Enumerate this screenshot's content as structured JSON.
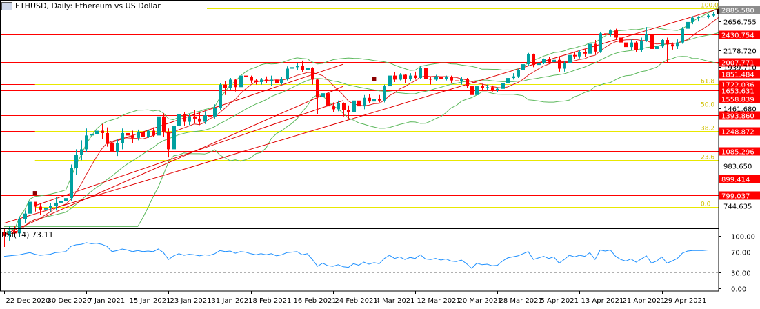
{
  "window": {
    "title": "ETHUSD, Daily:  Ethereum vs US Dollar",
    "icon": "chart-window-icon"
  },
  "rsi_panel": {
    "title": "RSI(14) 73.11",
    "levels": [
      "100.00",
      "70.00",
      "30.00",
      "0.00"
    ]
  },
  "price_axis": {
    "ticks": [
      "2656.755",
      "2178.720",
      "1939.710",
      "1461.680",
      "983.650",
      "744.635"
    ],
    "current_price": "2885.580",
    "current_price_color": "#8c8c8c"
  },
  "horizontal_levels": {
    "color": "#ff0000",
    "labels": [
      "2430.754",
      "2007.771",
      "1851.484",
      "1722.036",
      "1653.631",
      "1558.839",
      "1393.860",
      "1248.872",
      "1085.296",
      "899.414",
      "799.037"
    ]
  },
  "fibonacci": {
    "color": "#e8e800",
    "labels": [
      "100.0",
      "61.8",
      "50.0",
      "38.2",
      "23.6",
      "0.0"
    ]
  },
  "time_axis": {
    "labels": [
      "22 Dec 2020",
      "30 Dec 2020",
      "7 Jan 2021",
      "15 Jan 2021",
      "23 Jan 2021",
      "31 Jan 2021",
      "8 Feb 2021",
      "16 Feb 2021",
      "24 Feb 2021",
      "4 Mar 2021",
      "12 Mar 2021",
      "20 Mar 2021",
      "28 Mar 2021",
      "5 Apr 2021",
      "13 Apr 2021",
      "21 Apr 2021",
      "29 Apr 2021"
    ]
  },
  "colors": {
    "bull_candle": "#00a0a0",
    "bear_candle": "#ff0000",
    "bollinger": "#5cb85c",
    "sma": "#e02020",
    "rsi_line": "#1e90ff",
    "trendline": "#e00000"
  },
  "chart_data": {
    "type": "candlestick",
    "symbol": "ETHUSD",
    "timeframe": "Daily",
    "title": "ETHUSD, Daily:  Ethereum vs US Dollar",
    "start_date": "2020-12-21",
    "ylim": [
      640,
      2900
    ],
    "ohlc": [
      [
        619,
        640,
        560,
        605
      ],
      [
        605,
        645,
        585,
        625
      ],
      [
        625,
        648,
        600,
        615
      ],
      [
        615,
        690,
        600,
        680
      ],
      [
        680,
        720,
        660,
        705
      ],
      [
        705,
        780,
        690,
        765
      ],
      [
        765,
        760,
        715,
        740
      ],
      [
        740,
        755,
        700,
        725
      ],
      [
        725,
        750,
        700,
        735
      ],
      [
        735,
        760,
        715,
        745
      ],
      [
        745,
        790,
        720,
        760
      ],
      [
        760,
        780,
        740,
        770
      ],
      [
        770,
        800,
        760,
        785
      ],
      [
        785,
        990,
        770,
        965
      ],
      [
        965,
        1100,
        920,
        1060
      ],
      [
        1060,
        1170,
        1020,
        1100
      ],
      [
        1100,
        1270,
        1080,
        1210
      ],
      [
        1210,
        1250,
        1150,
        1220
      ],
      [
        1220,
        1330,
        1180,
        1250
      ],
      [
        1250,
        1310,
        1180,
        1230
      ],
      [
        1230,
        1280,
        1120,
        1150
      ],
      [
        1150,
        1200,
        990,
        1080
      ],
      [
        1080,
        1180,
        1050,
        1150
      ],
      [
        1150,
        1270,
        1100,
        1230
      ],
      [
        1230,
        1275,
        1150,
        1210
      ],
      [
        1210,
        1250,
        1150,
        1190
      ],
      [
        1190,
        1260,
        1170,
        1240
      ],
      [
        1240,
        1270,
        1180,
        1200
      ],
      [
        1200,
        1260,
        1190,
        1250
      ],
      [
        1250,
        1280,
        1200,
        1210
      ],
      [
        1210,
        1410,
        1190,
        1380
      ],
      [
        1380,
        1410,
        1200,
        1240
      ],
      [
        1240,
        1270,
        1040,
        1100
      ],
      [
        1100,
        1300,
        1080,
        1290
      ],
      [
        1290,
        1420,
        1270,
        1400
      ],
      [
        1400,
        1420,
        1290,
        1330
      ],
      [
        1330,
        1400,
        1300,
        1380
      ],
      [
        1380,
        1440,
        1320,
        1360
      ],
      [
        1360,
        1420,
        1300,
        1330
      ],
      [
        1330,
        1430,
        1310,
        1390
      ],
      [
        1390,
        1410,
        1340,
        1380
      ],
      [
        1380,
        1500,
        1360,
        1460
      ],
      [
        1460,
        1740,
        1440,
        1720
      ],
      [
        1720,
        1760,
        1600,
        1680
      ],
      [
        1680,
        1800,
        1660,
        1780
      ],
      [
        1780,
        1790,
        1640,
        1690
      ],
      [
        1690,
        1840,
        1670,
        1830
      ],
      [
        1830,
        1870,
        1780,
        1810
      ],
      [
        1810,
        1830,
        1740,
        1770
      ],
      [
        1770,
        1790,
        1720,
        1750
      ],
      [
        1750,
        1800,
        1720,
        1780
      ],
      [
        1780,
        1820,
        1740,
        1760
      ],
      [
        1760,
        1830,
        1700,
        1780
      ],
      [
        1780,
        1800,
        1660,
        1740
      ],
      [
        1740,
        1810,
        1720,
        1790
      ],
      [
        1790,
        1950,
        1770,
        1920
      ],
      [
        1920,
        1950,
        1880,
        1940
      ],
      [
        1940,
        1990,
        1900,
        1960
      ],
      [
        1960,
        2030,
        1870,
        1900
      ],
      [
        1900,
        1960,
        1850,
        1930
      ],
      [
        1930,
        1940,
        1720,
        1780
      ],
      [
        1780,
        1790,
        1400,
        1580
      ],
      [
        1580,
        1640,
        1480,
        1620
      ],
      [
        1620,
        1640,
        1460,
        1480
      ],
      [
        1480,
        1520,
        1420,
        1450
      ],
      [
        1450,
        1540,
        1430,
        1510
      ],
      [
        1510,
        1520,
        1380,
        1440
      ],
      [
        1440,
        1490,
        1360,
        1420
      ],
      [
        1420,
        1560,
        1400,
        1540
      ],
      [
        1540,
        1560,
        1460,
        1480
      ],
      [
        1480,
        1600,
        1450,
        1570
      ],
      [
        1570,
        1610,
        1510,
        1530
      ],
      [
        1530,
        1590,
        1500,
        1560
      ],
      [
        1560,
        1600,
        1520,
        1540
      ],
      [
        1540,
        1720,
        1520,
        1700
      ],
      [
        1700,
        1860,
        1680,
        1830
      ],
      [
        1830,
        1870,
        1750,
        1780
      ],
      [
        1780,
        1860,
        1770,
        1840
      ],
      [
        1840,
        1850,
        1740,
        1790
      ],
      [
        1790,
        1860,
        1760,
        1830
      ],
      [
        1830,
        1880,
        1780,
        1800
      ],
      [
        1800,
        1950,
        1790,
        1930
      ],
      [
        1930,
        1940,
        1750,
        1790
      ],
      [
        1790,
        1820,
        1720,
        1780
      ],
      [
        1780,
        1840,
        1760,
        1820
      ],
      [
        1820,
        1840,
        1760,
        1790
      ],
      [
        1790,
        1830,
        1770,
        1810
      ],
      [
        1810,
        1830,
        1740,
        1770
      ],
      [
        1770,
        1800,
        1720,
        1760
      ],
      [
        1760,
        1810,
        1720,
        1790
      ],
      [
        1790,
        1800,
        1680,
        1700
      ],
      [
        1700,
        1720,
        1570,
        1600
      ],
      [
        1600,
        1720,
        1590,
        1700
      ],
      [
        1700,
        1730,
        1660,
        1680
      ],
      [
        1680,
        1720,
        1650,
        1690
      ],
      [
        1690,
        1710,
        1640,
        1660
      ],
      [
        1660,
        1690,
        1630,
        1670
      ],
      [
        1670,
        1760,
        1650,
        1740
      ],
      [
        1740,
        1820,
        1720,
        1800
      ],
      [
        1800,
        1860,
        1780,
        1820
      ],
      [
        1820,
        1920,
        1800,
        1900
      ],
      [
        1900,
        2000,
        1880,
        1980
      ],
      [
        1980,
        2140,
        1960,
        2120
      ],
      [
        2120,
        2130,
        1940,
        1970
      ],
      [
        1970,
        2020,
        1950,
        2000
      ],
      [
        2000,
        2060,
        1980,
        2050
      ],
      [
        2050,
        2080,
        1980,
        2010
      ],
      [
        2010,
        2050,
        1970,
        2040
      ],
      [
        2040,
        2080,
        1880,
        1920
      ],
      [
        1920,
        2020,
        1880,
        2000
      ],
      [
        2000,
        2140,
        1990,
        2110
      ],
      [
        2110,
        2150,
        2050,
        2090
      ],
      [
        2090,
        2180,
        2060,
        2150
      ],
      [
        2150,
        2200,
        2080,
        2130
      ],
      [
        2130,
        2300,
        2120,
        2280
      ],
      [
        2280,
        2340,
        2120,
        2160
      ],
      [
        2160,
        2470,
        2140,
        2450
      ],
      [
        2450,
        2480,
        2360,
        2440
      ],
      [
        2440,
        2520,
        2400,
        2500
      ],
      [
        2500,
        2530,
        2340,
        2380
      ],
      [
        2380,
        2430,
        2080,
        2300
      ],
      [
        2300,
        2440,
        2150,
        2230
      ],
      [
        2230,
        2350,
        2180,
        2300
      ],
      [
        2300,
        2320,
        2150,
        2180
      ],
      [
        2180,
        2380,
        2150,
        2330
      ],
      [
        2330,
        2560,
        2310,
        2430
      ],
      [
        2430,
        2450,
        2140,
        2200
      ],
      [
        2200,
        2280,
        2040,
        2240
      ],
      [
        2240,
        2360,
        2220,
        2340
      ],
      [
        2340,
        2380,
        2000,
        2270
      ],
      [
        2270,
        2300,
        2190,
        2240
      ],
      [
        2240,
        2350,
        2200,
        2300
      ],
      [
        2300,
        2560,
        2280,
        2530
      ],
      [
        2530,
        2680,
        2500,
        2650
      ],
      [
        2650,
        2760,
        2610,
        2730
      ],
      [
        2730,
        2760,
        2660,
        2740
      ],
      [
        2740,
        2780,
        2700,
        2750
      ],
      [
        2750,
        2800,
        2720,
        2770
      ],
      [
        2770,
        2840,
        2740,
        2800
      ],
      [
        2800,
        2910,
        2780,
        2886
      ]
    ],
    "rsi": [
      61,
      62,
      63,
      64,
      66,
      68,
      65,
      63,
      64,
      65,
      68,
      69,
      70,
      80,
      83,
      84,
      87,
      85,
      86,
      84,
      80,
      70,
      72,
      75,
      73,
      70,
      72,
      70,
      71,
      70,
      75,
      68,
      55,
      62,
      66,
      63,
      65,
      64,
      62,
      64,
      63,
      66,
      72,
      70,
      71,
      67,
      70,
      69,
      66,
      64,
      66,
      64,
      66,
      62,
      64,
      68,
      69,
      70,
      64,
      66,
      55,
      42,
      48,
      43,
      42,
      45,
      41,
      40,
      47,
      44,
      50,
      46,
      49,
      47,
      57,
      63,
      57,
      60,
      55,
      59,
      57,
      64,
      56,
      55,
      57,
      54,
      56,
      52,
      51,
      54,
      47,
      38,
      48,
      45,
      46,
      43,
      44,
      52,
      58,
      60,
      62,
      66,
      70,
      55,
      58,
      61,
      57,
      60,
      48,
      55,
      63,
      60,
      63,
      61,
      68,
      55,
      73,
      71,
      73,
      61,
      55,
      52,
      56,
      50,
      56,
      62,
      48,
      52,
      60,
      48,
      52,
      57,
      67,
      71,
      72,
      72,
      72,
      73,
      73,
      73
    ],
    "horizontal_levels": [
      2430.754,
      2007.771,
      1851.484,
      1722.036,
      1653.631,
      1558.839,
      1393.86,
      1248.872,
      1085.296,
      899.414,
      799.037
    ],
    "fibonacci": {
      "high": 2920,
      "low": 740,
      "ratios": [
        100.0,
        61.8,
        50.0,
        38.2,
        23.6,
        0.0
      ]
    },
    "rsi_ylim": [
      0,
      100
    ]
  }
}
